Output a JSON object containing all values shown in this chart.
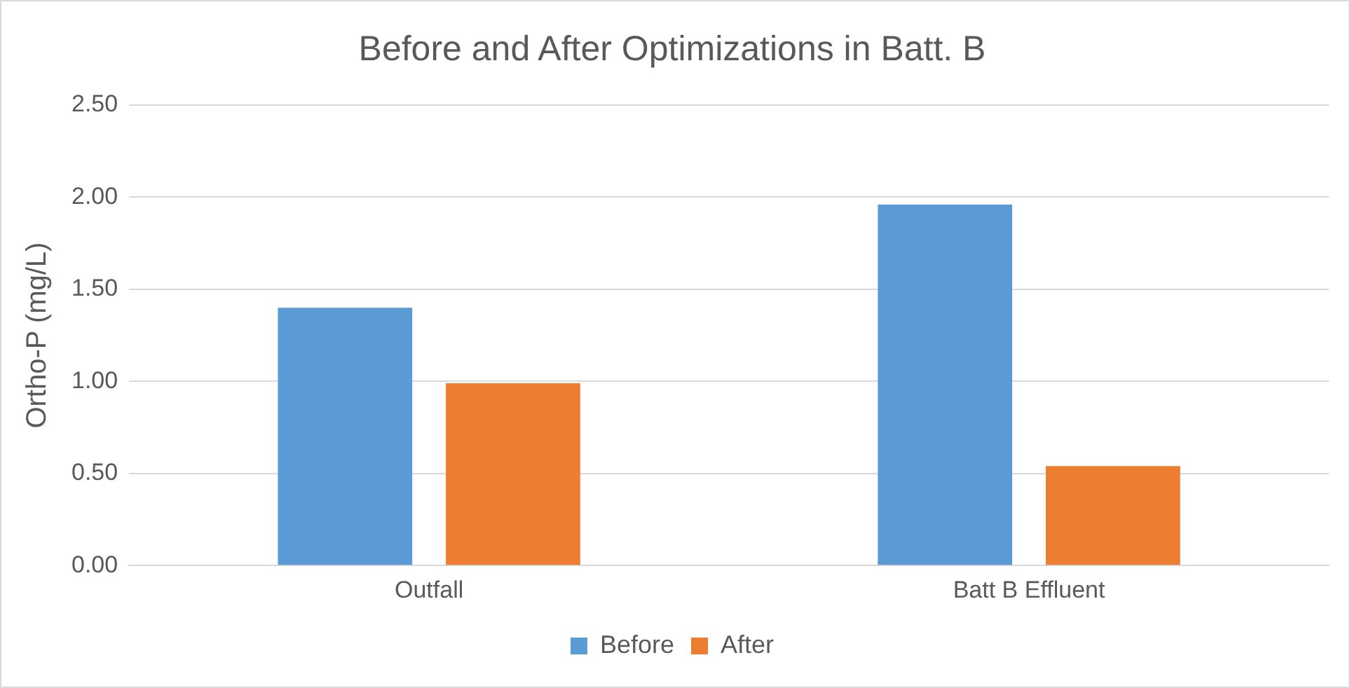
{
  "chart_data": {
    "type": "bar",
    "title": "Before and After Optimizations in Batt. B",
    "ylabel": "Ortho-P (mg/L)",
    "categories": [
      "Outfall",
      "Batt B Effluent"
    ],
    "series": [
      {
        "name": "Before",
        "color": "#5b9bd5",
        "values": [
          1.4,
          1.96
        ]
      },
      {
        "name": "After",
        "color": "#ed7d31",
        "values": [
          0.99,
          0.54
        ]
      }
    ],
    "ylim": [
      0,
      2.5
    ],
    "yticks": [
      {
        "value": 0,
        "label": "0.00"
      },
      {
        "value": 0.5,
        "label": "0.50"
      },
      {
        "value": 1,
        "label": "1.00"
      },
      {
        "value": 1.5,
        "label": "1.50"
      },
      {
        "value": 2,
        "label": "2.00"
      },
      {
        "value": 2.5,
        "label": "2.50"
      }
    ],
    "grid": "y",
    "legend": "bottom"
  }
}
